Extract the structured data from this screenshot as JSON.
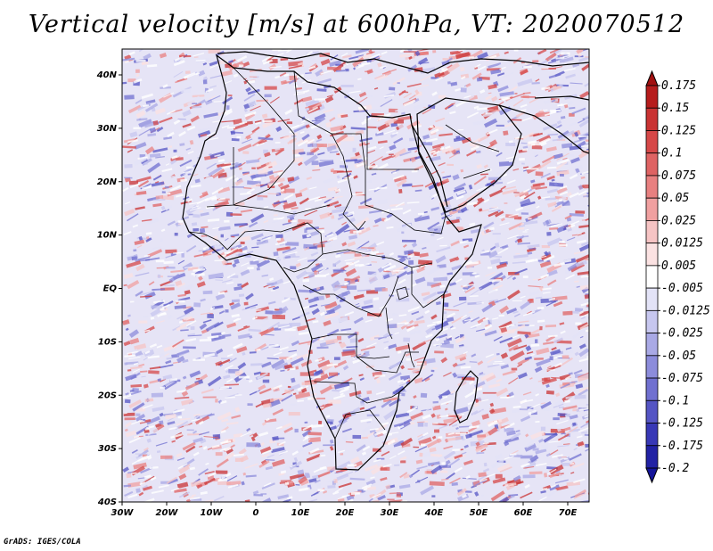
{
  "title": "Vertical velocity [m/s] at 600hPa, VT: 2020070512",
  "credit": "GrADS: IGES/COLA",
  "map": {
    "lon_range": [
      -30,
      75
    ],
    "lat_range": [
      -40,
      45
    ],
    "lat_ticks": [
      "40N",
      "30N",
      "20N",
      "10N",
      "EQ",
      "10S",
      "20S",
      "30S",
      "40S"
    ],
    "lon_ticks": [
      "30W",
      "20W",
      "10W",
      "0",
      "10E",
      "20E",
      "30E",
      "40E",
      "50E",
      "60E",
      "70E"
    ]
  },
  "colorbar": {
    "labels": [
      "0.175",
      "0.15",
      "0.125",
      "0.1",
      "0.075",
      "0.05",
      "0.025",
      "0.0125",
      "0.005",
      "-0.005",
      "-0.0125",
      "-0.025",
      "-0.05",
      "-0.075",
      "-0.1",
      "-0.125",
      "-0.175",
      "-0.2"
    ],
    "colors": [
      "#a11010",
      "#b61c1c",
      "#c93333",
      "#d64848",
      "#df6363",
      "#e88080",
      "#f0a0a0",
      "#f6c4c4",
      "#fbe2e2",
      "#ffffff",
      "#e3e3f7",
      "#c7c7ef",
      "#a9a9e5",
      "#8c8cdb",
      "#7070d0",
      "#5555c4",
      "#3838b6",
      "#2222a4",
      "#14149a"
    ]
  }
}
